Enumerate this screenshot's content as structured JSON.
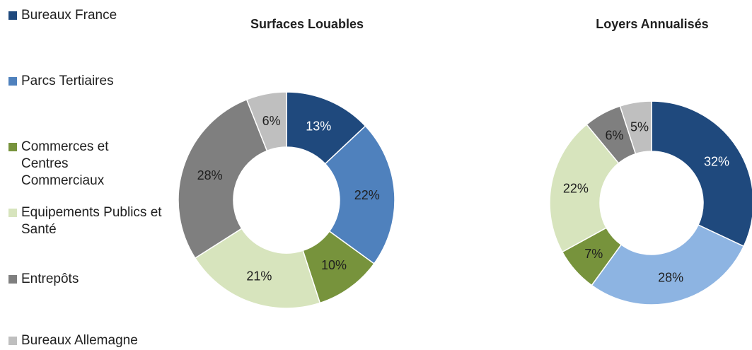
{
  "chart_data": [
    {
      "type": "pie",
      "title": "Surfaces Louables",
      "categories": [
        "Bureaux France",
        "Parcs Tertiaires",
        "Commerces et Centres Commerciaux",
        "Equipements Publics et Santé",
        "Entrepôts",
        "Bureaux Allemagne"
      ],
      "values": [
        13,
        22,
        10,
        21,
        28,
        6
      ],
      "labels": [
        "13%",
        "22%",
        "10%",
        "21%",
        "28%",
        "6%"
      ],
      "colors": [
        "#1f497d",
        "#4f81bd",
        "#77933c",
        "#d7e4bd",
        "#7f7f7f",
        "#bfbfbf"
      ],
      "label_colors": [
        "#ffffff",
        "#1f1f1f",
        "#1f1f1f",
        "#1f1f1f",
        "#1f1f1f",
        "#1f1f1f"
      ]
    },
    {
      "type": "pie",
      "title": "Loyers Annualisés",
      "categories": [
        "Bureaux France",
        "Parcs Tertiaires",
        "Commerces et Centres Commerciaux",
        "Equipements Publics et Santé",
        "Entrepôts",
        "Bureaux Allemagne"
      ],
      "values": [
        32,
        28,
        7,
        22,
        6,
        5
      ],
      "labels": [
        "32%",
        "28%",
        "7%",
        "22%",
        "6%",
        "5%"
      ],
      "colors": [
        "#1f497d",
        "#8db4e2",
        "#77933c",
        "#d7e4bd",
        "#7f7f7f",
        "#bfbfbf"
      ],
      "label_colors": [
        "#ffffff",
        "#1f1f1f",
        "#1f1f1f",
        "#1f1f1f",
        "#1f1f1f",
        "#1f1f1f"
      ]
    }
  ],
  "legend": {
    "items": [
      {
        "label": "Bureaux France",
        "color": "#1f497d"
      },
      {
        "label": "Parcs Tertiaires",
        "color": "#4f81bd"
      },
      {
        "label": "Commerces et Centres Commerciaux",
        "color": "#77933c"
      },
      {
        "label": "Equipements Publics et Santé",
        "color": "#d7e4bd"
      },
      {
        "label": "Entrepôts",
        "color": "#7f7f7f"
      },
      {
        "label": "Bureaux Allemagne",
        "color": "#bfbfbf"
      }
    ]
  }
}
